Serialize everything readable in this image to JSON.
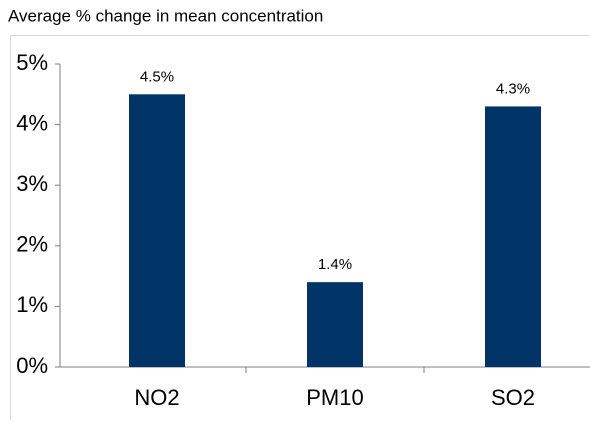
{
  "chart_data": {
    "type": "bar",
    "title": "Average % change in mean concentration",
    "categories": [
      "NO2",
      "PM10",
      "SO2"
    ],
    "values": [
      4.5,
      1.4,
      4.3
    ],
    "value_labels": [
      "4.5%",
      "1.4%",
      "4.3%"
    ],
    "color": "#003366",
    "ylim": [
      0,
      5
    ],
    "yticks": [
      {
        "value": 0,
        "label": "0%"
      },
      {
        "value": 1,
        "label": "1%"
      },
      {
        "value": 2,
        "label": "2%"
      },
      {
        "value": 3,
        "label": "3%"
      },
      {
        "value": 4,
        "label": "4%"
      },
      {
        "value": 5,
        "label": "5%"
      }
    ],
    "grid": false
  }
}
